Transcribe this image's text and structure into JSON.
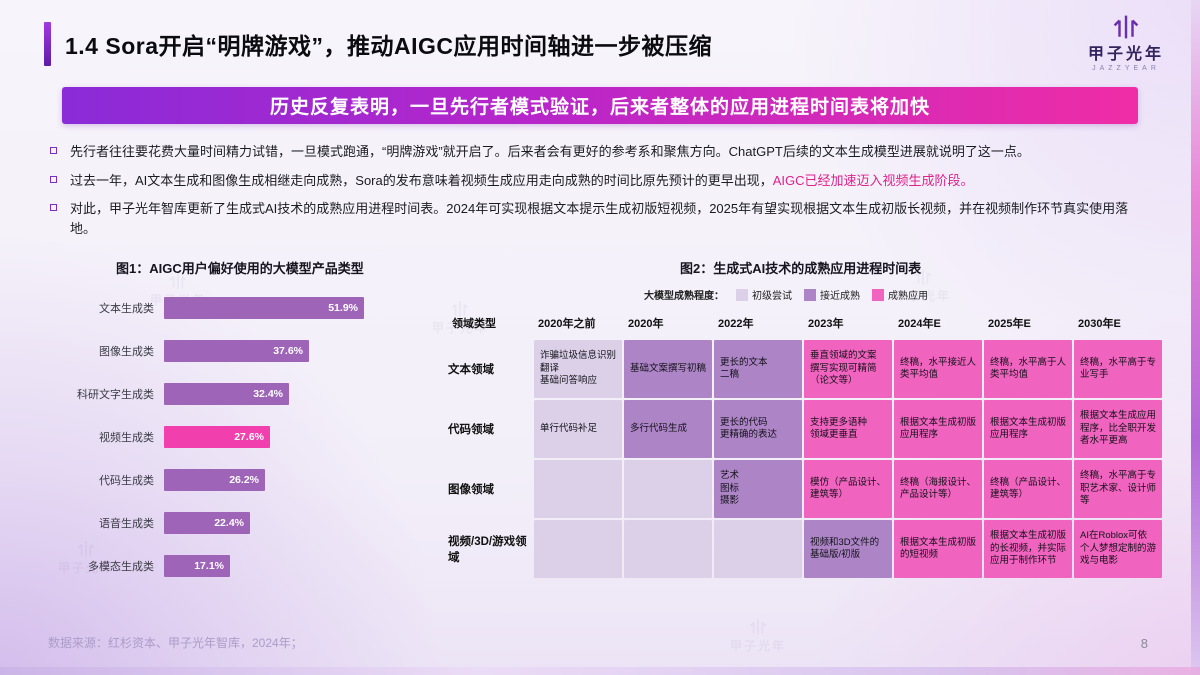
{
  "page": {
    "number": "8",
    "source": "数据来源：红杉资本、甲子光年智库，2024年；"
  },
  "header": {
    "title": "1.4 Sora开启“明牌游戏”，推动AIGC应用时间轴进一步被压缩",
    "logo": {
      "name": "甲子光年",
      "sub": "JAZZYEAR"
    }
  },
  "banner": {
    "text": "历史反复表明，一旦先行者模式验证，后来者整体的应用进程时间表将加快"
  },
  "bullets": [
    {
      "text": "先行者往往要花费大量时间精力试错，一旦模式跑通，“明牌游戏”就开启了。后来者会有更好的参考系和聚焦方向。ChatGPT后续的文本生成模型进展就说明了这一点。",
      "accent": ""
    },
    {
      "text": "过去一年，AI文本生成和图像生成相继走向成熟，Sora的发布意味着视频生成应用走向成熟的时间比原先预计的更早出现，",
      "accent": "AIGC已经加速迈入视频生成阶段。"
    },
    {
      "text": "对此，甲子光年智库更新了生成式AI技术的成熟应用进程时间表。2024年可实现根据文本提示生成初版短视频，2025年有望实现根据文本生成初版长视频，并在视频制作环节真实使用落地。",
      "accent": ""
    }
  ],
  "chart_data": [
    {
      "type": "bar",
      "title": "图1：AIGC用户偏好使用的大模型产品类型",
      "orientation": "horizontal",
      "categories": [
        "文本生成类",
        "图像生成类",
        "科研文字生成类",
        "视频生成类",
        "代码生成类",
        "语音生成类",
        "多模态生成类"
      ],
      "values": [
        51.9,
        37.6,
        32.4,
        27.6,
        26.2,
        22.4,
        17.1
      ],
      "unit": "%",
      "xlim": [
        0,
        55
      ],
      "bar_color": "#9e64b8",
      "highlight_category": "视频生成类",
      "highlight_color": "#f13fae",
      "value_label_color": "#ffffff",
      "grid": false,
      "legend_position": "none"
    },
    {
      "type": "table",
      "title": "图2：生成式AI技术的成熟应用进程时间表",
      "legend_label": "大模型成熟程度：",
      "levels": [
        {
          "id": "early",
          "label": "初级尝试",
          "color": "#dbd0e8"
        },
        {
          "id": "near",
          "label": "接近成熟",
          "color": "#ad85c7"
        },
        {
          "id": "mature",
          "label": "成熟应用",
          "color": "#f063be"
        }
      ],
      "columns": [
        "领域类型",
        "2020年之前",
        "2020年",
        "2022年",
        "2023年",
        "2024年E",
        "2025年E",
        "2030年E"
      ],
      "rows": [
        {
          "label": "文本领域",
          "cells": [
            {
              "text": "诈骗垃圾信息识别\n翻译\n基础问答响应",
              "level": "early"
            },
            {
              "text": "基础文案撰写初稿",
              "level": "near"
            },
            {
              "text": "更长的文本\n二稿",
              "level": "near"
            },
            {
              "text": "垂直领域的文案\n撰写实现可精简（论文等）",
              "level": "mature"
            },
            {
              "text": "终稿，水平接近人类平均值",
              "level": "mature"
            },
            {
              "text": "终稿，水平高于人类平均值",
              "level": "mature"
            },
            {
              "text": "终稿，水平高于专业写手",
              "level": "mature"
            }
          ]
        },
        {
          "label": "代码领域",
          "cells": [
            {
              "text": "单行代码补足",
              "level": "early"
            },
            {
              "text": "多行代码生成",
              "level": "near"
            },
            {
              "text": "更长的代码\n更精确的表达",
              "level": "near"
            },
            {
              "text": "支持更多语种\n领域更垂直",
              "level": "mature"
            },
            {
              "text": "根据文本生成初版应用程序",
              "level": "mature"
            },
            {
              "text": "根据文本生成初版应用程序",
              "level": "mature"
            },
            {
              "text": "根据文本生成应用程序，比全职开发者水平更高",
              "level": "mature"
            }
          ]
        },
        {
          "label": "图像领域",
          "cells": [
            {
              "text": "",
              "level": "early"
            },
            {
              "text": "",
              "level": "early"
            },
            {
              "text": "艺术\n图标\n摄影",
              "level": "near"
            },
            {
              "text": "模仿（产品设计、建筑等）",
              "level": "mature"
            },
            {
              "text": "终稿（海报设计、产品设计等）",
              "level": "mature"
            },
            {
              "text": "终稿（产品设计、建筑等）",
              "level": "mature"
            },
            {
              "text": "终稿，水平高于专职艺术家、设计师等",
              "level": "mature"
            }
          ]
        },
        {
          "label": "视频/3D/游戏领域",
          "cells": [
            {
              "text": "",
              "level": "early"
            },
            {
              "text": "",
              "level": "early"
            },
            {
              "text": "",
              "level": "early"
            },
            {
              "text": "视频和3D文件的基础版/初版",
              "level": "near"
            },
            {
              "text": "根据文本生成初版的短视频",
              "level": "mature"
            },
            {
              "text": "根据文本生成初版的长视频，并实际应用于制作环节",
              "level": "mature"
            },
            {
              "text": "AI在Roblox可依个人梦想定制的游戏与电影",
              "level": "mature"
            }
          ]
        }
      ]
    }
  ]
}
